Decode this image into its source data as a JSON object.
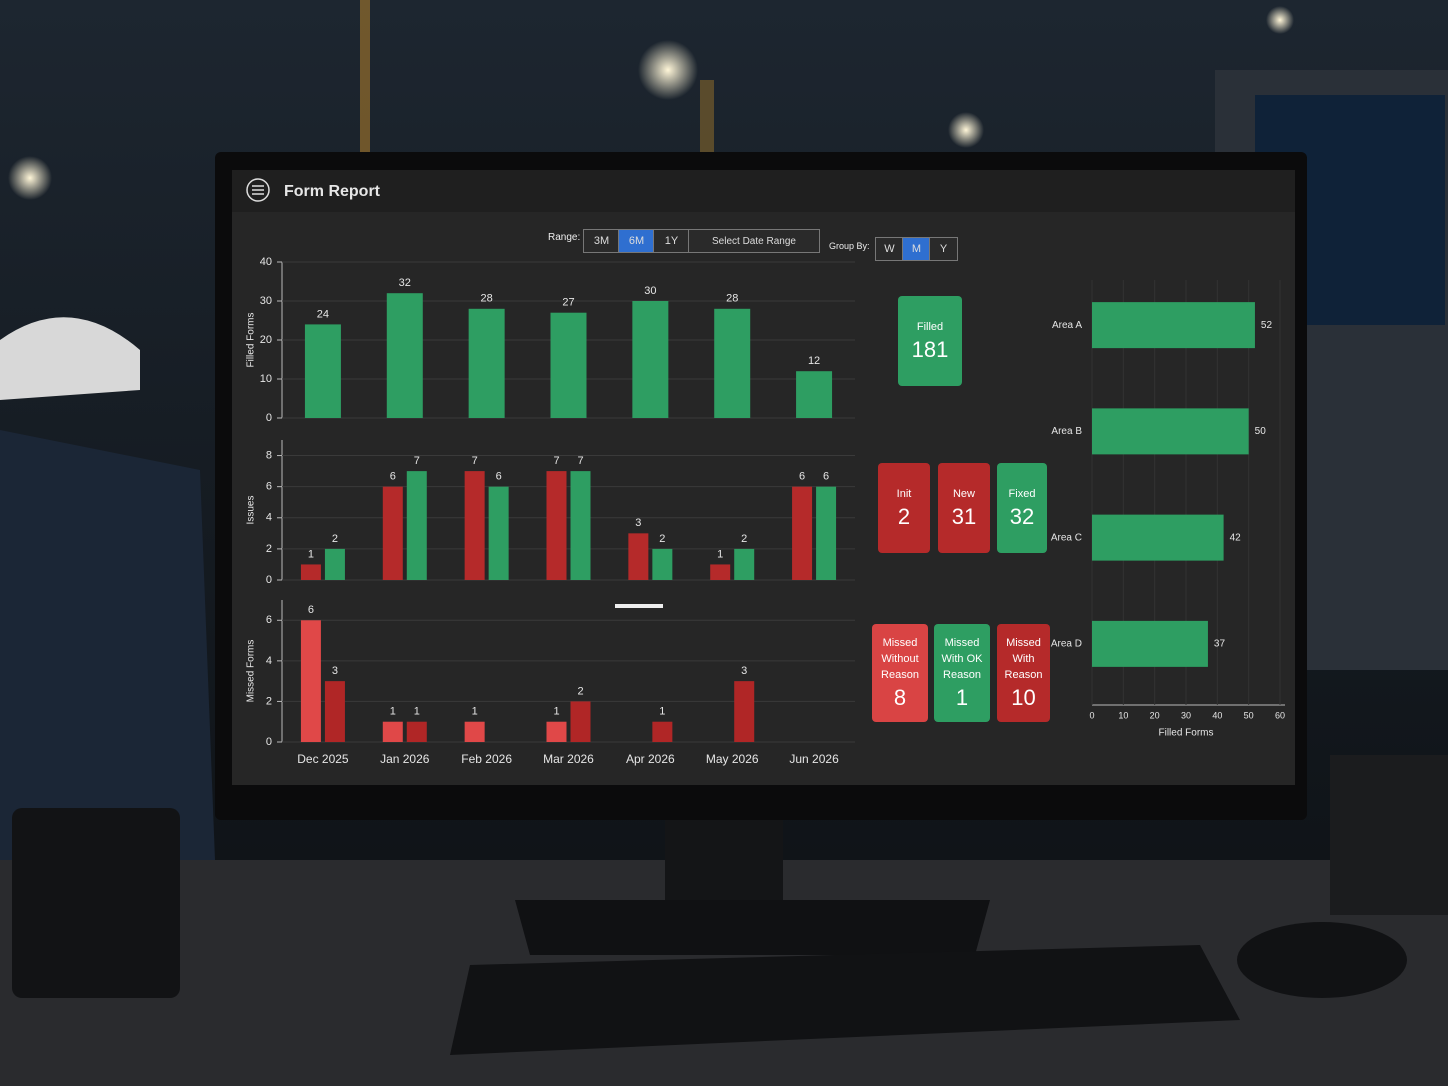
{
  "header": {
    "title": "Form Report"
  },
  "controls": {
    "range_label": "Range:",
    "range_options": [
      "3M",
      "6M",
      "1Y"
    ],
    "range_active": 1,
    "date_range_button": "Select Date Range",
    "group_label": "Group By:",
    "group_options": [
      "W",
      "M",
      "Y"
    ],
    "group_active": 1
  },
  "kpis": [
    {
      "label": "Filled",
      "value": 181,
      "color": "#2e9e62"
    },
    {
      "label": "Init",
      "value": 2,
      "color": "#b52a2a"
    },
    {
      "label": "New",
      "value": 31,
      "color": "#b52a2a"
    },
    {
      "label": "Fixed",
      "value": 32,
      "color": "#2e9e62"
    },
    {
      "label": "Missed Without Reason",
      "value": 8,
      "color": "#d94444"
    },
    {
      "label": "Missed With OK Reason",
      "value": 1,
      "color": "#2e9e62"
    },
    {
      "label": "Missed With Reason",
      "value": 10,
      "color": "#b52a2a"
    }
  ],
  "chart_data": [
    {
      "type": "bar",
      "y_label": "Filled Forms",
      "series": [
        {
          "color": "#2e9e62",
          "values": [
            24,
            32,
            28,
            27,
            30,
            28,
            12
          ]
        }
      ],
      "ylim": [
        0,
        40
      ],
      "yticks": [
        0,
        10,
        20,
        30,
        40
      ],
      "grid": true
    },
    {
      "type": "bar",
      "y_label": "Issues",
      "series": [
        {
          "color": "#b52a2a",
          "values": [
            1,
            6,
            7,
            7,
            3,
            1,
            6
          ]
        },
        {
          "color": "#2e9e62",
          "values": [
            2,
            7,
            6,
            7,
            2,
            2,
            6
          ]
        }
      ],
      "ylim": [
        0,
        9
      ],
      "yticks": [
        0,
        2,
        4,
        6,
        8
      ],
      "grid": true
    },
    {
      "type": "bar",
      "y_label": "Missed Forms",
      "categories": [
        "Dec 2025",
        "Jan 2026",
        "Feb 2026",
        "Mar 2026",
        "Apr 2026",
        "May 2026",
        "Jun 2026"
      ],
      "series": [
        {
          "color": "#e04848",
          "values": [
            6,
            1,
            1,
            1,
            null,
            null,
            null
          ]
        },
        {
          "color": "#b02626",
          "values": [
            3,
            1,
            null,
            2,
            1,
            3,
            null
          ]
        }
      ],
      "ylim": [
        0,
        7
      ],
      "yticks": [
        0,
        2,
        4,
        6
      ],
      "grid": true
    },
    {
      "type": "hbar",
      "x_label": "Filled Forms",
      "categories": [
        "Area A",
        "Area B",
        "Area C",
        "Area D"
      ],
      "values": [
        52,
        50,
        42,
        37
      ],
      "color": "#2e9e62",
      "xlim": [
        0,
        60
      ],
      "xticks": [
        0,
        10,
        20,
        30,
        40,
        50,
        60
      ],
      "grid": true
    }
  ]
}
